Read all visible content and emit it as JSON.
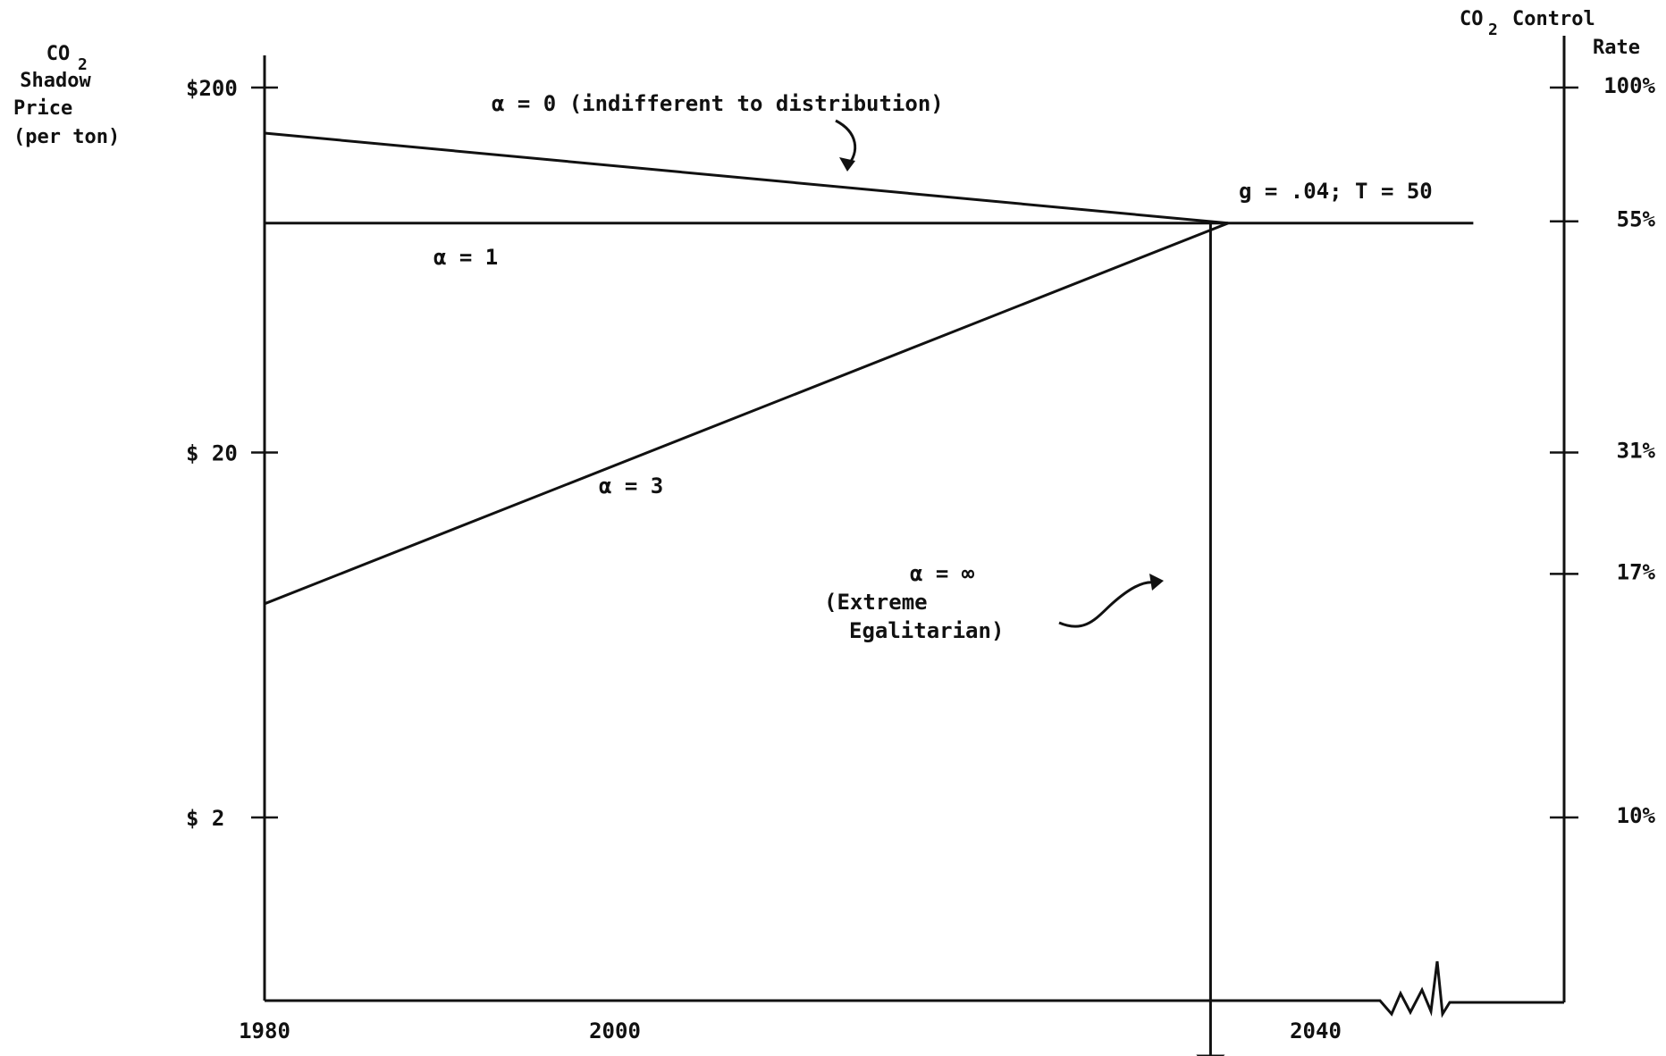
{
  "chart_data": {
    "type": "line",
    "y_scale": "log",
    "left_axis": {
      "title_lines": [
        "CO",
        "Shadow",
        "Price",
        "(per ton)"
      ],
      "title_subscript": "2",
      "ticks": [
        {
          "value": 200,
          "label": "$200"
        },
        {
          "value": 20,
          "label": "$ 20"
        },
        {
          "value": 2,
          "label": "$  2"
        }
      ]
    },
    "right_axis": {
      "title_lines": [
        "CO",
        "Control",
        "Rate"
      ],
      "title_subscript": "2",
      "ticks": [
        {
          "price": 200,
          "label": "100%"
        },
        {
          "price": 86,
          "label": "55%"
        },
        {
          "price": 20,
          "label": "31%"
        },
        {
          "price": 9.3,
          "label": "17%"
        },
        {
          "price": 2,
          "label": "10%"
        }
      ]
    },
    "x_axis": {
      "ticks": [
        {
          "value": 1980,
          "label": "1980"
        },
        {
          "value": 2000,
          "label": "2000"
        },
        {
          "value": 2040,
          "label": "2040"
        }
      ]
    },
    "series": [
      {
        "name": "α = 0 (indifferent to distribution)",
        "points": [
          [
            1980,
            150
          ],
          [
            2035,
            85
          ]
        ]
      },
      {
        "name": "α = 1",
        "points": [
          [
            1980,
            85
          ],
          [
            2035,
            85
          ],
          [
            2049,
            85
          ]
        ]
      },
      {
        "name": "α = 3",
        "points": [
          [
            1980,
            7.7
          ],
          [
            2035,
            85
          ]
        ]
      },
      {
        "name": "α = ∞",
        "points": [
          [
            2034,
            85
          ],
          [
            2034,
            0.4
          ]
        ]
      }
    ],
    "annotations": {
      "alpha0": "α = 0 (indifferent to distribution)",
      "alpha1": "α = 1",
      "alpha3": "α = 3",
      "params": "g = .04; T = 50",
      "alpha_inf": [
        "α = ∞",
        "(Extreme",
        "Egalitarian)"
      ]
    }
  }
}
